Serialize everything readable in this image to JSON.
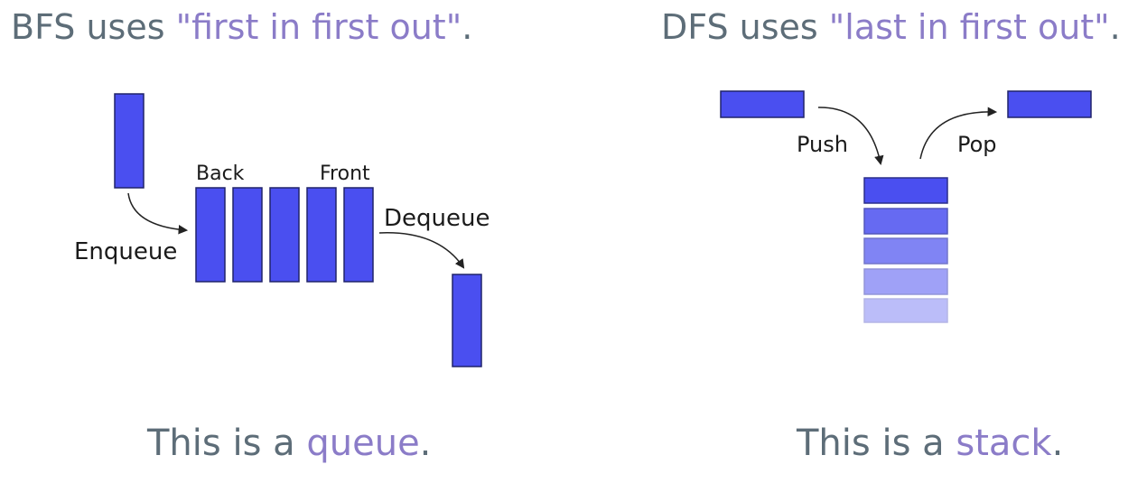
{
  "bfs": {
    "heading_prefix": "BFS uses ",
    "heading_quote": "\"first in first out\"",
    "heading_suffix": ".",
    "caption_prefix": "This is a ",
    "caption_accent": "queue",
    "caption_suffix": ".",
    "labels": {
      "back": "Back",
      "front": "Front",
      "enqueue": "Enqueue",
      "dequeue": "Dequeue"
    }
  },
  "dfs": {
    "heading_prefix": "DFS uses ",
    "heading_quote": "\"last in first out\"",
    "heading_suffix": ".",
    "caption_prefix": "This is a ",
    "caption_accent": "stack",
    "caption_suffix": ".",
    "labels": {
      "push": "Push",
      "pop": "Pop"
    }
  },
  "colors": {
    "text": "#5d6d78",
    "accent": "#8b7cc8",
    "block": "#4a4ff0",
    "block_border": "#20236a",
    "arrow": "#222222"
  }
}
